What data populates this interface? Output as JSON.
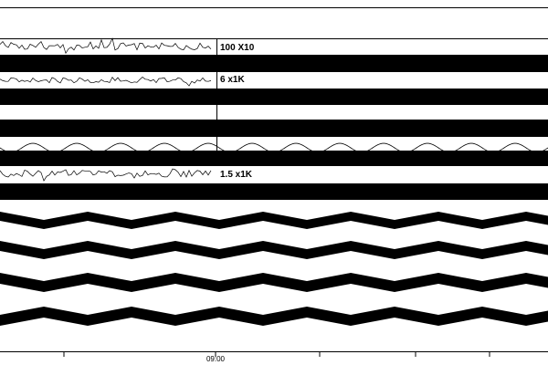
{
  "chart_data": {
    "type": "line",
    "title": "",
    "xlabel": "",
    "ylabel": "",
    "x_ticks": [
      "",
      "09:00",
      "",
      "",
      ""
    ],
    "channels": [
      {
        "label": "100 X10",
        "kind": "trace"
      },
      {
        "label": "",
        "kind": "band"
      },
      {
        "label": "6 x1K",
        "kind": "trace"
      },
      {
        "label": "",
        "kind": "band"
      },
      {
        "label": "",
        "kind": "band"
      },
      {
        "label": "",
        "kind": "sine"
      },
      {
        "label": "",
        "kind": "band"
      },
      {
        "label": "1.5 x1K",
        "kind": "trace"
      },
      {
        "label": "",
        "kind": "band"
      },
      {
        "label": "",
        "kind": "wave"
      },
      {
        "label": "",
        "kind": "wave"
      },
      {
        "label": "",
        "kind": "wave"
      },
      {
        "label": "",
        "kind": "wave"
      }
    ],
    "colors": {
      "ink": "#000000",
      "background": "#ffffff"
    }
  }
}
